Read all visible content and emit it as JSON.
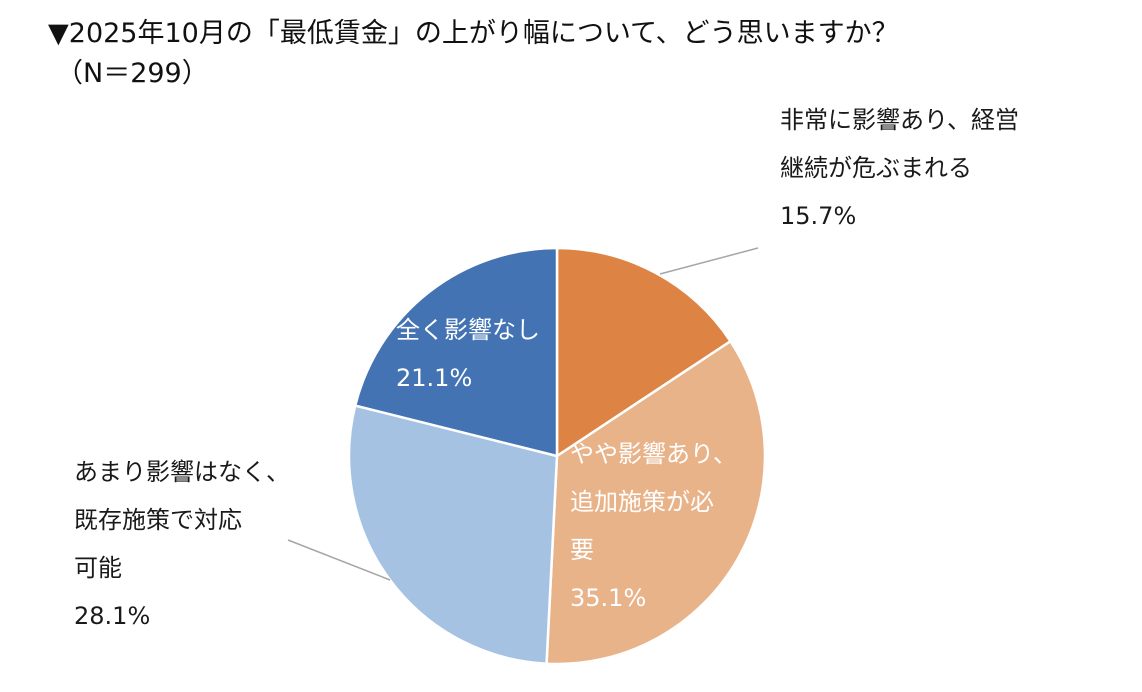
{
  "title": {
    "line1": "▼2025年10月の「最低賃金」の上がり幅について、どう思いますか？",
    "line2": "（N＝299）"
  },
  "chart_data": {
    "type": "pie",
    "title": "▼2025年10月の「最低賃金」の上がり幅について、どう思いますか？（N＝299）",
    "unit": "%",
    "start": "12 o'clock",
    "direction": "clockwise",
    "slices": [
      {
        "label_lines": [
          "非常に影響あり、経営",
          "継続が危ぶまれる"
        ],
        "value": 15.7,
        "value_text": "15.7%",
        "color": "#dd8444",
        "label_color": "#1a1a1a"
      },
      {
        "label_lines": [
          "やや影響あり、",
          "追加施策が必",
          "要"
        ],
        "value": 35.1,
        "value_text": "35.1%",
        "color": "#e9b38a",
        "label_color": "#ffffff"
      },
      {
        "label_lines": [
          "あまり影響はなく、",
          "既存施策で対応",
          "可能"
        ],
        "value": 28.1,
        "value_text": "28.1%",
        "color": "#a6c2e3",
        "label_color": "#1a1a1a"
      },
      {
        "label_lines": [
          "全く影響なし"
        ],
        "value": 21.1,
        "value_text": "21.1%",
        "color": "#4373b3",
        "label_color": "#ffffff"
      }
    ]
  }
}
